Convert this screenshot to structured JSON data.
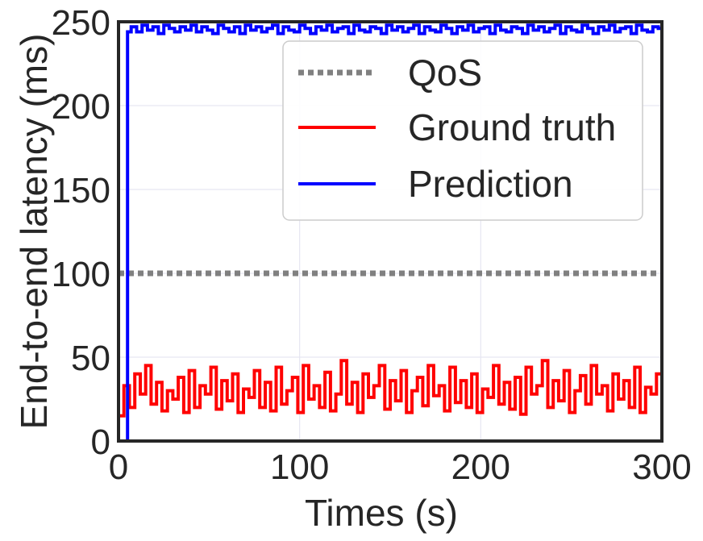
{
  "chart_data": {
    "type": "line",
    "xlabel": "Times (s)",
    "ylabel": "End-to-end latency (ms)",
    "xlim": [
      0,
      300
    ],
    "ylim": [
      0,
      250
    ],
    "x_ticks": [
      "0",
      "100",
      "200",
      "300"
    ],
    "y_ticks": [
      "0",
      "50",
      "100",
      "150",
      "200",
      "250"
    ],
    "grid": true,
    "legend_position": "top-right",
    "series": [
      {
        "name": "QoS",
        "style": "dotted",
        "color": "#808080",
        "x": [
          0,
          300
        ],
        "values": [
          100,
          100
        ]
      },
      {
        "name": "Ground truth",
        "style": "solid",
        "color": "#ff0000",
        "x": [
          0,
          3,
          6,
          9,
          12,
          15,
          18,
          21,
          24,
          27,
          30,
          33,
          36,
          39,
          42,
          45,
          48,
          51,
          54,
          57,
          60,
          63,
          66,
          69,
          72,
          75,
          78,
          81,
          84,
          87,
          90,
          93,
          96,
          99,
          102,
          105,
          108,
          111,
          114,
          117,
          120,
          123,
          126,
          129,
          132,
          135,
          138,
          141,
          144,
          147,
          150,
          153,
          156,
          159,
          162,
          165,
          168,
          171,
          174,
          177,
          180,
          183,
          186,
          189,
          192,
          195,
          198,
          201,
          204,
          207,
          210,
          213,
          216,
          219,
          222,
          225,
          228,
          231,
          234,
          237,
          240,
          243,
          246,
          249,
          252,
          255,
          258,
          261,
          264,
          267,
          270,
          273,
          276,
          279,
          282,
          285,
          288,
          291,
          294,
          297,
          300
        ],
        "values": [
          15,
          33,
          20,
          40,
          28,
          45,
          22,
          35,
          18,
          30,
          25,
          38,
          17,
          42,
          20,
          33,
          28,
          44,
          19,
          36,
          24,
          40,
          17,
          31,
          26,
          42,
          20,
          35,
          18,
          44,
          22,
          30,
          38,
          17,
          45,
          25,
          33,
          20,
          41,
          18,
          28,
          48,
          22,
          35,
          17,
          40,
          26,
          33,
          45,
          19,
          36,
          24,
          42,
          17,
          30,
          38,
          21,
          45,
          27,
          33,
          18,
          44,
          23,
          36,
          20,
          40,
          17,
          31,
          26,
          45,
          22,
          35,
          19,
          38,
          16,
          44,
          28,
          33,
          48,
          20,
          36,
          24,
          42,
          17,
          30,
          39,
          22,
          45,
          28,
          33,
          18,
          40,
          25,
          36,
          20,
          44,
          17,
          32,
          28,
          40,
          35
        ]
      },
      {
        "name": "Prediction",
        "style": "solid",
        "color": "#0000ff",
        "x": [
          0,
          4,
          5,
          7,
          10,
          13,
          16,
          19,
          22,
          25,
          28,
          31,
          34,
          37,
          40,
          43,
          46,
          49,
          52,
          55,
          58,
          61,
          64,
          67,
          70,
          73,
          76,
          79,
          82,
          85,
          88,
          91,
          94,
          97,
          100,
          103,
          106,
          109,
          112,
          115,
          118,
          121,
          124,
          127,
          130,
          133,
          136,
          139,
          142,
          145,
          148,
          151,
          154,
          157,
          160,
          163,
          166,
          169,
          172,
          175,
          178,
          181,
          184,
          187,
          190,
          193,
          196,
          199,
          202,
          205,
          208,
          211,
          214,
          217,
          220,
          223,
          226,
          229,
          232,
          235,
          238,
          241,
          244,
          247,
          250,
          253,
          256,
          259,
          262,
          265,
          268,
          271,
          274,
          277,
          280,
          283,
          286,
          289,
          292,
          295,
          298,
          300
        ],
        "values": [
          0,
          0,
          244,
          247,
          244,
          248,
          245,
          247,
          243,
          248,
          246,
          244,
          247,
          245,
          248,
          244,
          247,
          245,
          243,
          248,
          246,
          244,
          247,
          243,
          248,
          245,
          247,
          244,
          246,
          248,
          243,
          247,
          245,
          244,
          248,
          246,
          243,
          247,
          245,
          248,
          244,
          246,
          247,
          243,
          248,
          245,
          244,
          247,
          246,
          243,
          248,
          245,
          247,
          244,
          246,
          248,
          243,
          247,
          245,
          244,
          248,
          246,
          243,
          247,
          245,
          248,
          244,
          246,
          247,
          243,
          248,
          245,
          244,
          247,
          246,
          243,
          248,
          245,
          247,
          244,
          246,
          248,
          243,
          247,
          245,
          244,
          248,
          246,
          243,
          247,
          245,
          248,
          244,
          246,
          247,
          243,
          248,
          245,
          244,
          247,
          246,
          247
        ]
      }
    ]
  }
}
